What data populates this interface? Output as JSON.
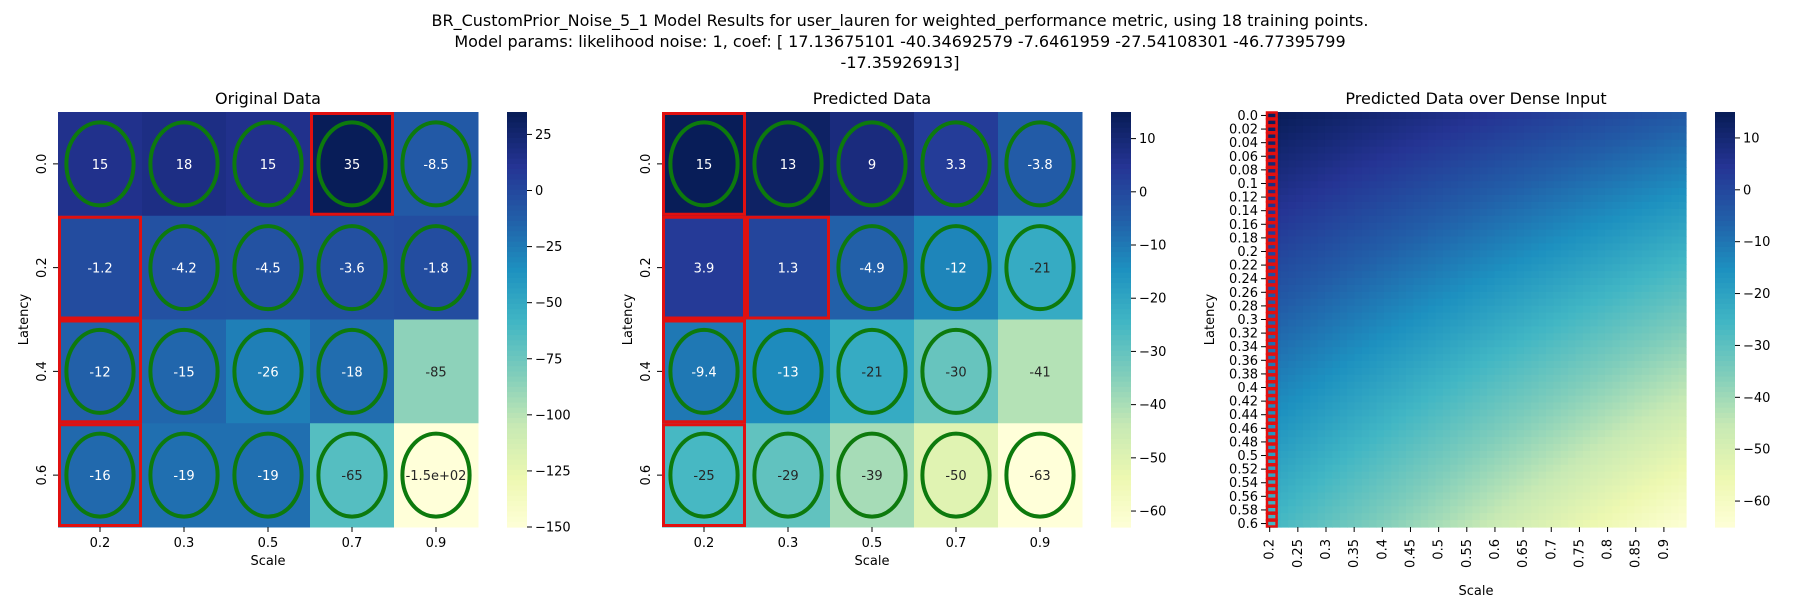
{
  "suptitle_lines": [
    "BR_CustomPrior_Noise_5_1 Model Results for user_lauren for weighted_performance metric, using 18 training points.",
    "Model params: likelihood noise: 1, coef: [ 17.13675101 -40.34692579  -7.6461959  -27.54108301 -46.77395799",
    "-17.35926913]"
  ],
  "chart_data": [
    {
      "type": "heatmap",
      "title": "Original Data",
      "xlabel": "Scale",
      "ylabel": "Latency",
      "x_ticks": [
        "0.2",
        "0.3",
        "0.5",
        "0.7",
        "0.9"
      ],
      "y_ticks": [
        "0.0",
        "0.2",
        "0.4",
        "0.6"
      ],
      "values": [
        [
          15,
          18,
          15,
          35,
          -8.5
        ],
        [
          -1.2,
          -4.2,
          -4.5,
          -3.6,
          -1.8
        ],
        [
          -12,
          -15,
          -26,
          -18,
          -85
        ],
        [
          -16,
          -19,
          -19,
          -65,
          -150
        ]
      ],
      "value_labels": [
        [
          "15",
          "18",
          "15",
          "35",
          "-8.5"
        ],
        [
          "-1.2",
          "-4.2",
          "-4.5",
          "-3.6",
          "-1.8"
        ],
        [
          "-12",
          "-15",
          "-26",
          "-18",
          "-85"
        ],
        [
          "-16",
          "-19",
          "-19",
          "-65",
          "-1.5e+02"
        ]
      ],
      "colorbar": {
        "min": -150,
        "max": 35,
        "ticks": [
          25,
          0,
          -25,
          -50,
          -75,
          -100,
          -125,
          -150
        ]
      },
      "colormap": "YlGnBu",
      "ellipses": [
        [
          0,
          0
        ],
        [
          0,
          1
        ],
        [
          0,
          2
        ],
        [
          0,
          3
        ],
        [
          0,
          4
        ],
        [
          1,
          1
        ],
        [
          1,
          2
        ],
        [
          1,
          3
        ],
        [
          1,
          4
        ],
        [
          2,
          0
        ],
        [
          2,
          1
        ],
        [
          2,
          2
        ],
        [
          2,
          3
        ],
        [
          3,
          0
        ],
        [
          3,
          1
        ],
        [
          3,
          2
        ],
        [
          3,
          3
        ],
        [
          3,
          4
        ]
      ],
      "red_boxes": [
        [
          0,
          3
        ],
        [
          1,
          0
        ],
        [
          2,
          0
        ],
        [
          3,
          0
        ]
      ]
    },
    {
      "type": "heatmap",
      "title": "Predicted Data",
      "xlabel": "Scale",
      "ylabel": "Latency",
      "x_ticks": [
        "0.2",
        "0.3",
        "0.5",
        "0.7",
        "0.9"
      ],
      "y_ticks": [
        "0.0",
        "0.2",
        "0.4",
        "0.6"
      ],
      "values": [
        [
          15,
          13,
          9,
          3.3,
          -3.8
        ],
        [
          3.9,
          1.3,
          -4.9,
          -12,
          -21
        ],
        [
          -9.4,
          -13,
          -21,
          -30,
          -41
        ],
        [
          -25,
          -29,
          -39,
          -50,
          -63
        ]
      ],
      "value_labels": [
        [
          "15",
          "13",
          "9",
          "3.3",
          "-3.8"
        ],
        [
          "3.9",
          "1.3",
          "-4.9",
          "-12",
          "-21"
        ],
        [
          "-9.4",
          "-13",
          "-21",
          "-30",
          "-41"
        ],
        [
          "-25",
          "-29",
          "-39",
          "-50",
          "-63"
        ]
      ],
      "colorbar": {
        "min": -63,
        "max": 15,
        "ticks": [
          10,
          0,
          -10,
          -20,
          -30,
          -40,
          -50,
          -60
        ]
      },
      "colormap": "YlGnBu",
      "ellipses": [
        [
          0,
          0
        ],
        [
          0,
          1
        ],
        [
          0,
          2
        ],
        [
          0,
          3
        ],
        [
          0,
          4
        ],
        [
          1,
          2
        ],
        [
          1,
          3
        ],
        [
          1,
          4
        ],
        [
          2,
          0
        ],
        [
          2,
          1
        ],
        [
          2,
          2
        ],
        [
          2,
          3
        ],
        [
          3,
          0
        ],
        [
          3,
          1
        ],
        [
          3,
          2
        ],
        [
          3,
          3
        ],
        [
          3,
          4
        ]
      ],
      "red_boxes": [
        [
          0,
          0
        ],
        [
          1,
          0
        ],
        [
          1,
          1
        ],
        [
          2,
          0
        ],
        [
          3,
          0
        ]
      ]
    },
    {
      "type": "heatmap",
      "title": "Predicted Data over Dense Input",
      "xlabel": "Scale",
      "ylabel": "Latency",
      "x_ticks": [
        "0.2",
        "0.25",
        "0.3",
        "0.35",
        "0.4",
        "0.45",
        "0.5",
        "0.55",
        "0.6",
        "0.65",
        "0.7",
        "0.75",
        "0.8",
        "0.85",
        "0.9"
      ],
      "y_ticks": [
        "0.0",
        "0.02",
        "0.04",
        "0.06",
        "0.08",
        "0.1",
        "0.12",
        "0.14",
        "0.16",
        "0.18",
        "0.2",
        "0.22",
        "0.24",
        "0.26",
        "0.28",
        "0.3",
        "0.32",
        "0.34",
        "0.36",
        "0.38",
        "0.4",
        "0.42",
        "0.44",
        "0.46",
        "0.48",
        "0.5",
        "0.52",
        "0.54",
        "0.56",
        "0.58",
        "0.6"
      ],
      "surface": {
        "x_range": [
          0.2,
          0.9
        ],
        "y_range": [
          0.0,
          0.6
        ],
        "corners": {
          "top_left": 15,
          "top_right": -3.8,
          "bottom_left": -25,
          "bottom_right": -63
        }
      },
      "colorbar": {
        "min": -65,
        "max": 15,
        "ticks": [
          10,
          0,
          -10,
          -20,
          -30,
          -40,
          -50,
          -60
        ]
      },
      "colormap": "YlGnBu",
      "red_strip_column": "0.2"
    }
  ]
}
